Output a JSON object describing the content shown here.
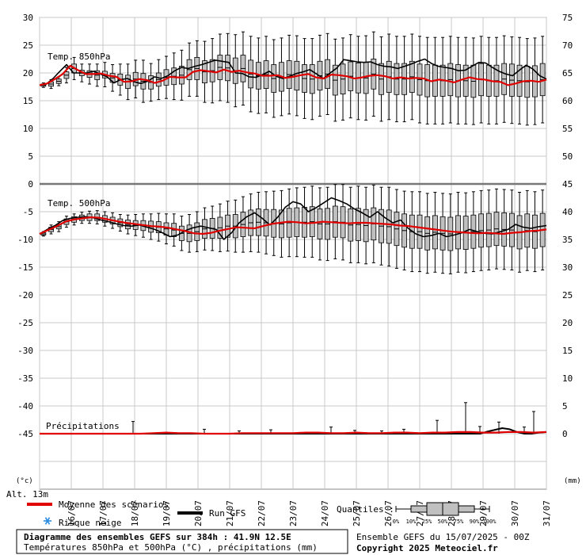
{
  "chart_data": {
    "type": "boxplot",
    "left_axis_ticks": [
      "30",
      "25",
      "20",
      "15",
      "10",
      "5",
      "0",
      "-5",
      "-10",
      "-15",
      "-20",
      "-25",
      "-30",
      "-35",
      "-40",
      "-45"
    ],
    "right_axis_ticks": [
      "75",
      "70",
      "65",
      "60",
      "55",
      "50",
      "45",
      "40",
      "35",
      "30",
      "25",
      "20",
      "15",
      "10",
      "5",
      "0"
    ],
    "x_ticks": [
      "16/07",
      "17/07",
      "18/07",
      "19/07",
      "20/07",
      "21/07",
      "22/07",
      "23/07",
      "24/07",
      "25/07",
      "26/07",
      "27/07",
      "28/07",
      "29/07",
      "30/07",
      "31/07"
    ],
    "x_range": [
      0,
      16
    ],
    "panels": {
      "t850": {
        "label": "Temp. 850hPa",
        "ylim": [
          0,
          30
        ],
        "mean": [
          17.8,
          18.1,
          18.9,
          19.8,
          21.3,
          20.5,
          19.8,
          19.8,
          19.9,
          19.5,
          19.3,
          18.4,
          18.5,
          18.9,
          18.7,
          18.2,
          18.6,
          19.3,
          19.2,
          19.2,
          20.2,
          20.5,
          20.3,
          20.1,
          20.6,
          20.2,
          20.4,
          20.1,
          19.9,
          19.5,
          19.5,
          19.6,
          19.1,
          19.3,
          19.6,
          19.8,
          19.2,
          19.0,
          19.7,
          19.6,
          19.4,
          19.0,
          19.2,
          19.5,
          19.6,
          19.4,
          19.0,
          19.2,
          19.0,
          19.1,
          19.0,
          18.5,
          18.8,
          18.6,
          18.3,
          18.8,
          19.2,
          18.9,
          18.8,
          18.5,
          18.4,
          17.8,
          18.1,
          18.5,
          18.6,
          18.4,
          18.8
        ],
        "gfs": [
          17.8,
          18.0,
          19.0,
          20.3,
          21.5,
          20.0,
          20.0,
          20.0,
          20.3,
          19.8,
          19.3,
          18.2,
          18.8,
          19.0,
          18.4,
          18.1,
          18.5,
          19.3,
          19.0,
          19.5,
          20.4,
          21.0,
          20.8,
          21.2,
          21.5,
          21.9,
          22.3,
          22.1,
          21.9,
          20.0,
          19.9,
          19.3,
          19.2,
          19.7,
          20.3,
          19.4,
          19.0,
          19.4,
          19.9,
          20.2,
          20.6,
          19.8,
          19.0,
          20.0,
          20.9,
          22.4,
          22.2,
          22.0,
          21.9,
          22.0,
          21.5,
          21.2,
          21.1,
          20.8,
          21.2,
          21.6,
          22.1,
          22.5,
          21.7,
          21.2,
          21.0,
          20.8,
          20.4,
          20.5,
          21.2,
          21.9,
          21.8,
          21.0,
          20.3,
          19.8,
          19.5,
          20.5,
          21.4,
          20.7,
          19.5,
          18.9
        ]
      },
      "t500": {
        "label": "Temp. 500hPa",
        "ylim": [
          -45,
          0
        ],
        "mean": [
          -9.0,
          -8.3,
          -7.6,
          -6.8,
          -6.4,
          -6.2,
          -6.0,
          -6.1,
          -6.4,
          -6.7,
          -7.0,
          -7.2,
          -7.4,
          -7.6,
          -7.7,
          -7.9,
          -8.2,
          -8.5,
          -8.9,
          -9.0,
          -8.8,
          -8.4,
          -8.1,
          -7.8,
          -7.9,
          -8.0,
          -7.6,
          -7.2,
          -7.0,
          -6.8,
          -6.9,
          -7.1,
          -7.0,
          -6.8,
          -6.9,
          -7.0,
          -7.1,
          -7.0,
          -7.0,
          -7.1,
          -7.2,
          -7.3,
          -7.5,
          -7.6,
          -7.8,
          -8.0,
          -8.2,
          -8.4,
          -8.6,
          -8.7,
          -8.8,
          -8.9,
          -8.8,
          -8.9,
          -9.0,
          -8.8,
          -8.7,
          -8.5,
          -8.4,
          -8.2
        ],
        "gfs": [
          -9.0,
          -8.2,
          -7.5,
          -6.6,
          -6.2,
          -6.0,
          -5.9,
          -6.1,
          -6.5,
          -6.8,
          -7.2,
          -7.5,
          -7.6,
          -7.4,
          -7.8,
          -8.2,
          -8.8,
          -9.5,
          -9.2,
          -8.4,
          -7.9,
          -7.6,
          -7.9,
          -8.2,
          -10.0,
          -8.8,
          -7.0,
          -5.9,
          -5.2,
          -6.2,
          -7.4,
          -6.0,
          -4.2,
          -3.2,
          -3.6,
          -5.0,
          -4.3,
          -3.4,
          -2.5,
          -3.0,
          -3.6,
          -4.5,
          -5.2,
          -6.0,
          -5.0,
          -6.1,
          -7.0,
          -6.5,
          -8.0,
          -9.0,
          -9.5,
          -9.3,
          -8.9,
          -9.5,
          -9.2,
          -8.8,
          -8.2,
          -8.6,
          -8.9,
          -9.0,
          -8.6,
          -8.2,
          -7.3,
          -7.8,
          -8.0,
          -7.7,
          -7.5
        ]
      },
      "precip": {
        "label": "Précipitations",
        "ylim": [
          0,
          45
        ],
        "mean": [
          0,
          0,
          0,
          0,
          0,
          0,
          0,
          0,
          0,
          0.1,
          0.2,
          0.1,
          0.1,
          0,
          0,
          0,
          0.1,
          0.1,
          0.1,
          0.1,
          0.1,
          0.2,
          0.2,
          0.1,
          0.1,
          0.2,
          0.1,
          0.1,
          0.2,
          0.2,
          0.1,
          0.2,
          0.2,
          0.3,
          0.3,
          0.2,
          0.2,
          0.3,
          0.3,
          0.2,
          0.3
        ],
        "gfs": [
          0,
          0,
          0,
          0,
          0,
          0,
          0,
          0,
          0,
          0,
          0,
          0,
          0,
          0,
          0,
          0,
          0,
          0,
          0,
          0,
          0,
          0,
          0,
          0,
          0,
          0,
          0,
          0,
          0,
          0,
          0,
          0,
          0,
          0,
          0,
          0,
          0,
          0,
          0,
          0,
          0,
          0,
          0,
          0,
          0,
          0,
          0,
          0,
          0,
          0,
          0,
          0,
          0,
          0,
          0,
          0,
          0,
          0,
          0,
          0,
          0,
          0.4,
          0.7,
          1.0,
          0.8,
          0.3,
          0,
          0,
          0.2,
          0.3
        ]
      }
    },
    "box_series": [
      {
        "panel": "t850",
        "center": [
          17.8,
          18.0,
          18.5,
          19.6,
          20.8,
          20.0,
          19.8,
          19.6,
          19.7,
          19.1,
          18.8,
          18.4,
          18.9,
          18.5,
          18.3,
          18.8,
          19.2,
          19.4,
          19.6,
          20.6,
          20.8,
          20.2,
          20.4,
          21.0,
          20.9,
          20.4,
          20.8,
          19.8,
          19.5,
          19.7,
          19.0,
          19.3,
          19.7,
          19.5,
          19.0,
          18.9,
          19.5,
          19.8,
          18.7,
          18.9,
          19.4,
          19.1,
          19.1,
          19.8,
          18.9,
          19.3,
          18.9,
          18.9,
          19.3,
          18.8,
          18.6,
          18.6,
          18.6,
          18.8,
          18.6,
          18.6,
          18.5,
          18.8,
          18.6,
          18.6,
          18.9,
          18.7,
          18.6,
          18.4,
          18.5,
          18.8
        ],
        "spread": [
          0.2,
          0.4,
          0.4,
          0.6,
          0.8,
          0.5,
          0.6,
          0.8,
          0.6,
          0.8,
          1.0,
          1.2,
          1.2,
          1.4,
          1.2,
          1.2,
          1.4,
          1.5,
          1.6,
          1.8,
          2.0,
          2.0,
          2.0,
          2.2,
          2.3,
          2.3,
          2.4,
          2.5,
          2.4,
          2.5,
          2.5,
          2.6,
          2.5,
          2.6,
          2.5,
          2.6,
          2.6,
          2.6,
          2.7,
          2.7,
          2.6,
          2.7,
          2.8,
          2.7,
          2.8,
          2.8,
          2.8,
          2.8,
          2.8,
          2.8,
          2.9,
          2.8,
          2.8,
          2.9,
          2.9,
          2.8,
          2.9,
          2.9,
          2.8,
          2.8,
          2.8,
          2.9,
          2.8,
          2.8,
          2.8,
          2.9
        ],
        "whisker": [
          0.4,
          0.8,
          0.8,
          1.4,
          2.0,
          1.6,
          1.8,
          2.0,
          2.2,
          2.4,
          2.8,
          3.2,
          3.4,
          3.8,
          3.4,
          3.6,
          3.8,
          4.2,
          4.5,
          4.8,
          5.0,
          5.5,
          5.8,
          6.0,
          6.2,
          6.5,
          6.6,
          6.8,
          6.8,
          6.9,
          7.0,
          7.0,
          7.1,
          7.2,
          7.2,
          7.3,
          7.3,
          7.3,
          7.4,
          7.4,
          7.5,
          7.5,
          7.6,
          7.6,
          7.6,
          7.7,
          7.7,
          7.7,
          7.7,
          7.8,
          7.8,
          7.8,
          7.8,
          7.8,
          7.8,
          7.8,
          7.8,
          7.8,
          7.8,
          7.8,
          7.8,
          7.8,
          7.8,
          7.8,
          7.8,
          7.8
        ]
      },
      {
        "panel": "t500",
        "center": [
          -9.0,
          -8.2,
          -7.7,
          -6.8,
          -6.4,
          -6.1,
          -6.0,
          -6.0,
          -6.3,
          -6.6,
          -7.0,
          -7.3,
          -7.4,
          -7.5,
          -7.7,
          -7.8,
          -8.1,
          -8.3,
          -8.9,
          -8.9,
          -8.6,
          -8.1,
          -8.0,
          -7.9,
          -7.6,
          -7.6,
          -7.3,
          -7.0,
          -6.9,
          -7.0,
          -7.1,
          -7.2,
          -7.0,
          -6.9,
          -6.9,
          -6.8,
          -7.2,
          -7.2,
          -6.8,
          -6.9,
          -7.4,
          -7.3,
          -7.5,
          -7.2,
          -7.6,
          -7.7,
          -8.1,
          -8.4,
          -8.6,
          -8.6,
          -8.9,
          -8.7,
          -8.9,
          -9.0,
          -8.7,
          -8.8,
          -8.6,
          -8.4,
          -8.3,
          -8.1,
          -8.2,
          -8.3,
          -8.7,
          -8.4,
          -8.6,
          -8.3
        ],
        "spread": [
          0.2,
          0.4,
          0.4,
          0.5,
          0.5,
          0.5,
          0.6,
          0.6,
          0.6,
          0.6,
          0.7,
          0.8,
          0.8,
          0.9,
          1.0,
          1.0,
          1.1,
          1.2,
          1.3,
          1.5,
          1.6,
          1.7,
          1.8,
          1.9,
          2.0,
          2.1,
          2.2,
          2.3,
          2.4,
          2.4,
          2.5,
          2.5,
          2.6,
          2.6,
          2.7,
          2.7,
          2.7,
          2.8,
          2.8,
          2.8,
          2.9,
          2.9,
          2.9,
          2.9,
          3.0,
          3.0,
          3.0,
          3.0,
          3.0,
          3.0,
          3.0,
          3.0,
          3.0,
          3.0,
          3.0,
          3.0,
          3.0,
          3.0,
          3.0,
          3.0,
          3.0,
          3.0,
          3.0,
          3.0,
          3.0,
          3.0
        ],
        "whisker": [
          0.4,
          0.8,
          0.9,
          1.0,
          1.0,
          1.0,
          1.1,
          1.2,
          1.3,
          1.4,
          1.5,
          1.7,
          1.9,
          2.1,
          2.3,
          2.5,
          2.7,
          2.9,
          3.1,
          3.4,
          3.6,
          3.8,
          4.0,
          4.3,
          4.5,
          4.7,
          5.0,
          5.2,
          5.4,
          5.6,
          5.8,
          6.0,
          6.1,
          6.2,
          6.3,
          6.4,
          6.5,
          6.6,
          6.7,
          6.8,
          6.8,
          6.9,
          6.9,
          7.0,
          7.0,
          7.1,
          7.1,
          7.1,
          7.2,
          7.2,
          7.2,
          7.2,
          7.2,
          7.2,
          7.2,
          7.2,
          7.2,
          7.2,
          7.2,
          7.2,
          7.2,
          7.2,
          7.2,
          7.2,
          7.2,
          7.2
        ]
      }
    ],
    "precip_whiskers": [
      {
        "x": 2.95,
        "y": 2.2
      },
      {
        "x": 5.2,
        "y": 0.8
      },
      {
        "x": 6.3,
        "y": 0.5
      },
      {
        "x": 7.3,
        "y": 0.7
      },
      {
        "x": 9.2,
        "y": 1.2
      },
      {
        "x": 9.95,
        "y": 0.6
      },
      {
        "x": 10.8,
        "y": 0.5
      },
      {
        "x": 11.5,
        "y": 0.8
      },
      {
        "x": 12.55,
        "y": 2.4
      },
      {
        "x": 13.45,
        "y": 5.6
      },
      {
        "x": 13.9,
        "y": 1.3
      },
      {
        "x": 14.5,
        "y": 2.1
      },
      {
        "x": 15.3,
        "y": 1.2
      },
      {
        "x": 15.6,
        "y": 4.0
      }
    ],
    "colors": {
      "mean": "#e00000",
      "gfs": "#000000",
      "box": "#c0c0c0",
      "grid": "#c8c8c8"
    }
  },
  "labels": {
    "left_unit": "(°c)",
    "right_unit": "(mm)",
    "altitude": "Alt. 13m"
  },
  "legend": {
    "mean_label": "Moyenne des scénarios",
    "gfs_label": "Run GFS",
    "snow_label": "Risque neige",
    "quantiles_label": "Quantiles :",
    "quantile_ticks": [
      "0%",
      "10%",
      "25%",
      "50%",
      "75%",
      "90%",
      "100%"
    ]
  },
  "footer": {
    "title": "Diagramme des ensembles GEFS sur 384h : 41.9N 12.5E",
    "subtitle": "Températures 850hPa et 500hPa (°C) , précipitations (mm)",
    "run": "Ensemble GEFS du 15/07/2025 - 00Z",
    "copyright": "Copyright 2025 Meteociel.fr"
  }
}
